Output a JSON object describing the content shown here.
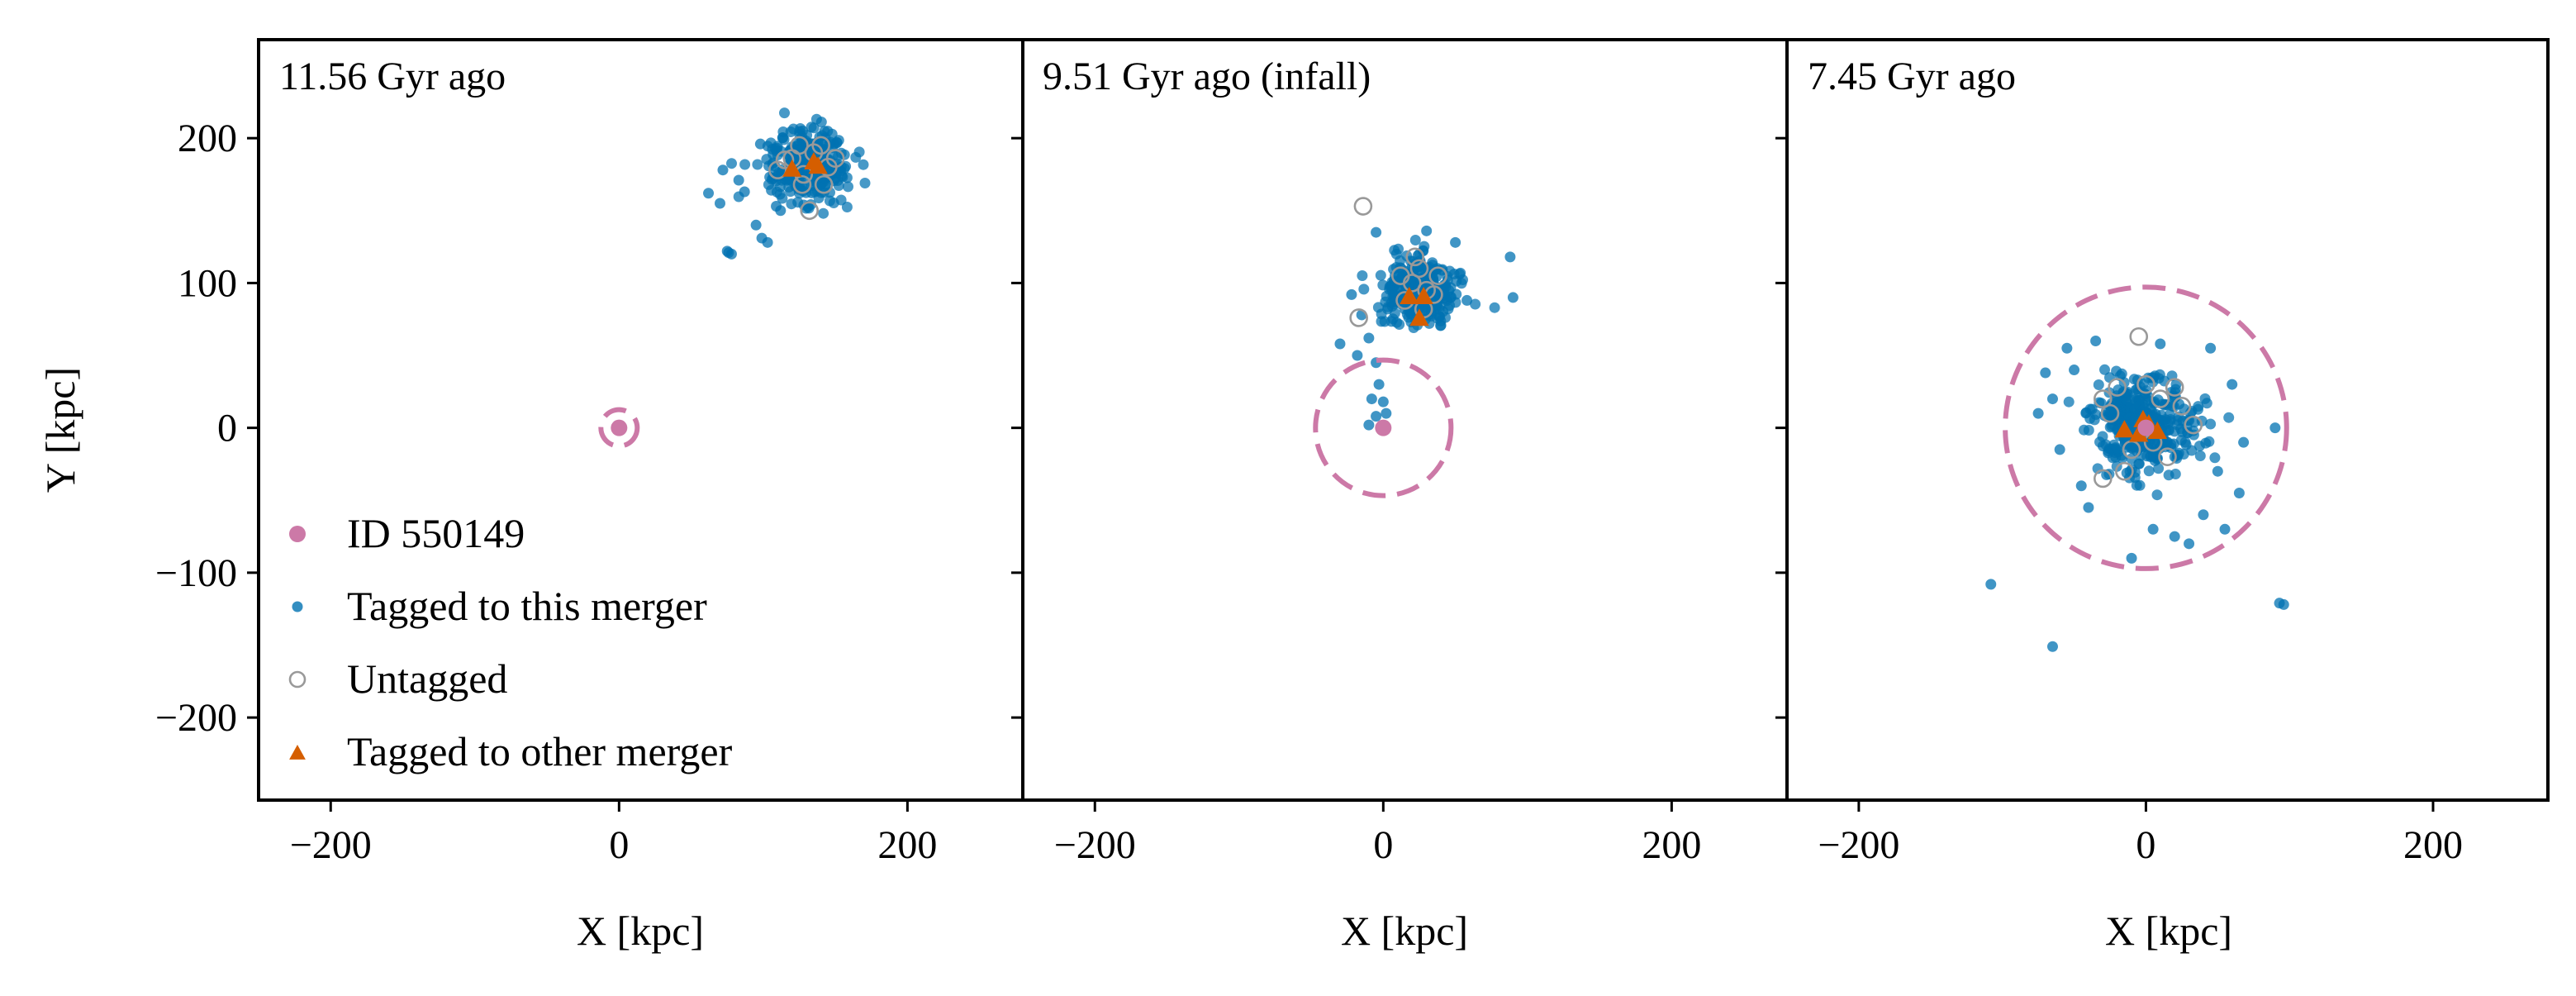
{
  "colors": {
    "host": "#cc79a7",
    "tagged": "#0072b2",
    "untagged": "#999999",
    "other": "#d55e00",
    "axis": "#000000"
  },
  "legend": {
    "host": "ID 550149",
    "tagged": "Tagged to this merger",
    "untagged": "Untagged",
    "other": "Tagged to other merger"
  },
  "chart_data": {
    "type": "scatter",
    "shared": {
      "xlabel": "X [kpc]",
      "ylabel": "Y [kpc]",
      "xlim": [
        -250,
        280
      ],
      "ylim": [
        -257,
        268
      ],
      "xticks": [
        -200,
        0,
        200
      ],
      "xtick_labels": [
        "−200",
        "0",
        "200"
      ],
      "yticks": [
        -200,
        -100,
        0,
        100,
        200
      ],
      "ytick_labels": [
        "−200",
        "−100",
        "0",
        "100",
        "200"
      ]
    },
    "panels": [
      {
        "title": "11.56 Gyr ago",
        "host": {
          "x": 0,
          "y": 0,
          "radius": 6
        },
        "cluster": {
          "cx": 130,
          "cy": 182,
          "sx": 14,
          "sy": 12,
          "n": 320
        },
        "outliers": [
          [
            76,
            121
          ],
          [
            78,
            120
          ],
          [
            75,
            122
          ],
          [
            62,
            162
          ],
          [
            70,
            155
          ],
          [
            72,
            178
          ],
          [
            95,
            140
          ],
          [
            99,
            131
          ],
          [
            103,
            128
          ],
          [
            87,
            163
          ],
          [
            83,
            171
          ],
          [
            109,
            153
          ],
          [
            112,
            150
          ],
          [
            98,
            196
          ]
        ],
        "untagged": [
          [
            120,
            186
          ],
          [
            135,
            190
          ],
          [
            128,
            175
          ],
          [
            145,
            180
          ],
          [
            110,
            178
          ],
          [
            132,
            150
          ],
          [
            125,
            195
          ],
          [
            142,
            168
          ],
          [
            115,
            185
          ],
          [
            140,
            195
          ],
          [
            127,
            168
          ],
          [
            150,
            186
          ]
        ],
        "other": [
          [
            120,
            178
          ],
          [
            135,
            183
          ],
          [
            138,
            180
          ]
        ]
      },
      {
        "title": "9.51 Gyr ago (infall)",
        "host": {
          "x": 0,
          "y": 0,
          "radius": 47
        },
        "cluster": {
          "cx": 25,
          "cy": 95,
          "sx": 13,
          "sy": 12,
          "n": 300
        },
        "outliers": [
          [
            -15,
            78
          ],
          [
            -10,
            62
          ],
          [
            -5,
            45
          ],
          [
            -3,
            30
          ],
          [
            0,
            18
          ],
          [
            -5,
            8
          ],
          [
            -10,
            2
          ],
          [
            2,
            10
          ],
          [
            -18,
            50
          ],
          [
            -22,
            92
          ],
          [
            58,
            88
          ],
          [
            90,
            90
          ],
          [
            88,
            118
          ],
          [
            -5,
            135
          ],
          [
            30,
            136
          ],
          [
            50,
            128
          ],
          [
            -30,
            58
          ],
          [
            -8,
            20
          ]
        ],
        "untagged": [
          [
            -14,
            153
          ],
          [
            -17,
            76
          ],
          [
            20,
            100
          ],
          [
            30,
            95
          ],
          [
            15,
            88
          ],
          [
            25,
            110
          ],
          [
            35,
            92
          ],
          [
            12,
            105
          ],
          [
            28,
            82
          ],
          [
            22,
            118
          ],
          [
            38,
            105
          ]
        ],
        "other": [
          [
            18,
            90
          ],
          [
            28,
            90
          ],
          [
            25,
            75
          ]
        ]
      },
      {
        "title": "7.45 Gyr ago",
        "host": {
          "x": 0,
          "y": 0,
          "radius": 98
        },
        "cluster": {
          "cx": -2,
          "cy": 2,
          "sx": 17,
          "sy": 15,
          "n": 380
        },
        "outliers": [
          [
            -108,
            -108
          ],
          [
            -65,
            -151
          ],
          [
            93,
            -121
          ],
          [
            96,
            -122
          ],
          [
            90,
            0
          ],
          [
            -75,
            10
          ],
          [
            -65,
            20
          ],
          [
            -60,
            -15
          ],
          [
            -50,
            40
          ],
          [
            -45,
            -40
          ],
          [
            45,
            55
          ],
          [
            50,
            -30
          ],
          [
            40,
            -60
          ],
          [
            55,
            -70
          ],
          [
            20,
            -75
          ],
          [
            -10,
            -90
          ],
          [
            30,
            -80
          ],
          [
            60,
            30
          ],
          [
            -70,
            38
          ],
          [
            68,
            -10
          ],
          [
            -55,
            55
          ],
          [
            10,
            58
          ],
          [
            -35,
            60
          ],
          [
            65,
            -45
          ],
          [
            -40,
            -55
          ],
          [
            5,
            -70
          ]
        ],
        "untagged": [
          [
            -5,
            63
          ],
          [
            -30,
            -35
          ],
          [
            33,
            2
          ],
          [
            -20,
            28
          ],
          [
            10,
            20
          ],
          [
            -10,
            -15
          ],
          [
            15,
            -20
          ],
          [
            0,
            30
          ],
          [
            -25,
            10
          ],
          [
            25,
            15
          ],
          [
            5,
            -10
          ],
          [
            -15,
            -30
          ],
          [
            20,
            28
          ],
          [
            -30,
            20
          ]
        ],
        "other": [
          [
            -15,
            -2
          ],
          [
            -2,
            5
          ],
          [
            2,
            2
          ],
          [
            8,
            -3
          ],
          [
            -5,
            -5
          ]
        ]
      }
    ]
  }
}
